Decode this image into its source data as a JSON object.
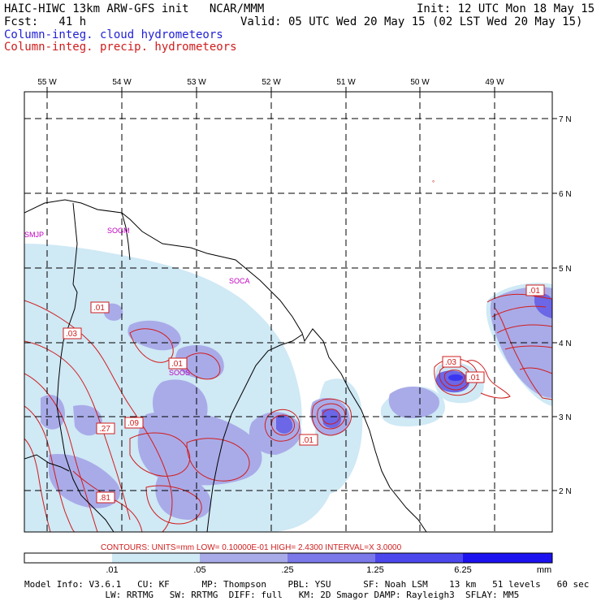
{
  "header": {
    "title_left": "HAIC-HIWC 13km ARW-GFS init   NCAR/MMM",
    "init": "Init: 12 UTC Mon 18 May 15",
    "fcst": "Fcst:   41 h",
    "valid": "Valid: 05 UTC Wed 20 May 15 (02 LST Wed 20 May 15)",
    "field_cloud": "Column-integ. cloud hydrometeors",
    "field_precip": "Column-integ. precip. hydrometeors"
  },
  "map": {
    "lon_labels": [
      "55 W",
      "54 W",
      "53 W",
      "52 W",
      "51 W",
      "50 W",
      "49 W"
    ],
    "lat_labels": [
      "7 N",
      "6 N",
      "5 N",
      "4 N",
      "3 N",
      "2 N"
    ],
    "station_labels": [
      "SMJP",
      "SOGM",
      "SOCA",
      "SOOS"
    ],
    "contour_labels": [
      ".01",
      ".03",
      ".01",
      ".27",
      ".09",
      ".81",
      ".01",
      ".03",
      ".01",
      ".01"
    ],
    "colors": {
      "cloud_light": "#cfe9f5",
      "cloud_mid": "#a9abe8",
      "cloud_dark": "#6b67e6",
      "precip": "#d01c1c"
    }
  },
  "contours_line": "CONTOURS:  UNITS=mm   LOW= 0.10000E-01  HIGH=  2.4300     INTERVAL=X  3.0000",
  "colorbar": {
    "values": [
      ".01",
      ".05",
      ".25",
      "1.25",
      "6.25"
    ],
    "unit": "mm",
    "colors": [
      "#ffffff",
      "#cfe9f5",
      "#a9abe8",
      "#7b78ea",
      "#4b47ec",
      "#1c12f0"
    ]
  },
  "footer": {
    "line1": "Model Info: V3.6.1   CU: KF      MP: Thompson    PBL: YSU      SF: Noah LSM    13 km   51 levels   60 sec",
    "line2": "               LW: RRTMG   SW: RRTMG  DIFF: full   KM: 2D Smagor DAMP: Rayleigh3  SFLAY: MM5"
  }
}
